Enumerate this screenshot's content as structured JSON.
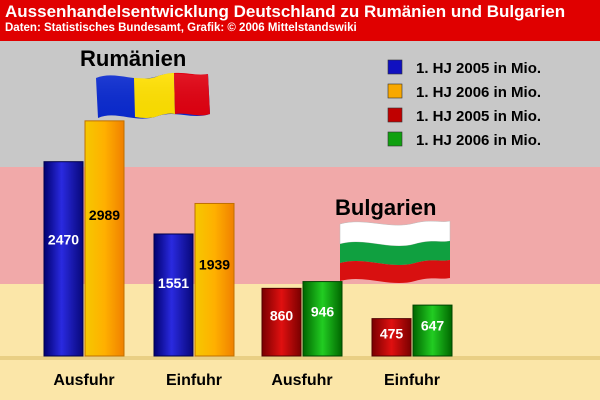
{
  "header": {
    "title": "Aussenhandelsentwicklung Deutschland zu Rumänien und Bulgarien",
    "subtitle": "Daten: Statistisches Bundesamt, Grafik: © 2006 Mittelstandswiki"
  },
  "countries": {
    "romania": "Rumänien",
    "bulgaria": "Bulgarien"
  },
  "colors": {
    "blue": "#1010c0",
    "orange": "#f8a800",
    "red": "#c00000",
    "green": "#10a010",
    "band_top": "#c8c8c8",
    "band_mid": "#f1a9a9",
    "band_bottom": "#fbe6a8",
    "header_red": "#e00000"
  },
  "chart_data": {
    "type": "bar",
    "categories": [
      "Ausfuhr",
      "Einfuhr",
      "Ausfuhr",
      "Einfuhr"
    ],
    "groups": [
      "Rumänien",
      "Rumänien",
      "Bulgarien",
      "Bulgarien"
    ],
    "series": [
      {
        "name": "1. HJ 2005 in Mio.",
        "values": [
          2470,
          1551,
          860,
          475
        ]
      },
      {
        "name": "1. HJ 2006 in Mio.",
        "values": [
          2989,
          1939,
          946,
          647
        ]
      }
    ],
    "legend": [
      {
        "label": "1. HJ 2005 in Mio.",
        "color": "#1010c0"
      },
      {
        "label": "1. HJ 2006 in Mio.",
        "color": "#f8a800"
      },
      {
        "label": "1. HJ 2005 in Mio.",
        "color": "#c00000"
      },
      {
        "label": "1. HJ 2006 in Mio.",
        "color": "#10a010"
      }
    ],
    "legend_position": "top-right",
    "ylim": [
      0,
      3000
    ],
    "grid": false
  }
}
